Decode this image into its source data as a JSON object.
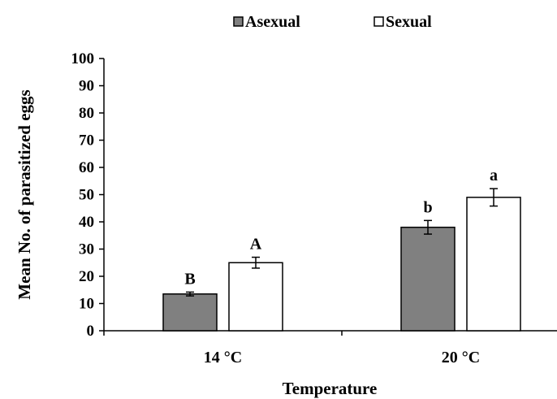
{
  "chart_data": {
    "type": "bar",
    "title": "",
    "xlabel": "Temperature",
    "ylabel": "Mean No. of parasitized eggs",
    "categories": [
      "14 °C",
      "20 °C"
    ],
    "ylim": [
      0,
      100
    ],
    "yticks": [
      "0",
      "10",
      "20",
      "30",
      "40",
      "50",
      "60",
      "70",
      "80",
      "90",
      "100"
    ],
    "grid": false,
    "legend_position": "top",
    "series": [
      {
        "name": "Asexual",
        "color": "#808080",
        "values": [
          13.5,
          38
        ],
        "errors": [
          0.7,
          2.5
        ],
        "labels": [
          "B",
          "b"
        ]
      },
      {
        "name": "Sexual",
        "color": "#ffffff",
        "values": [
          25,
          49
        ],
        "errors": [
          2,
          3.2
        ],
        "labels": [
          "A",
          "a"
        ]
      }
    ]
  }
}
